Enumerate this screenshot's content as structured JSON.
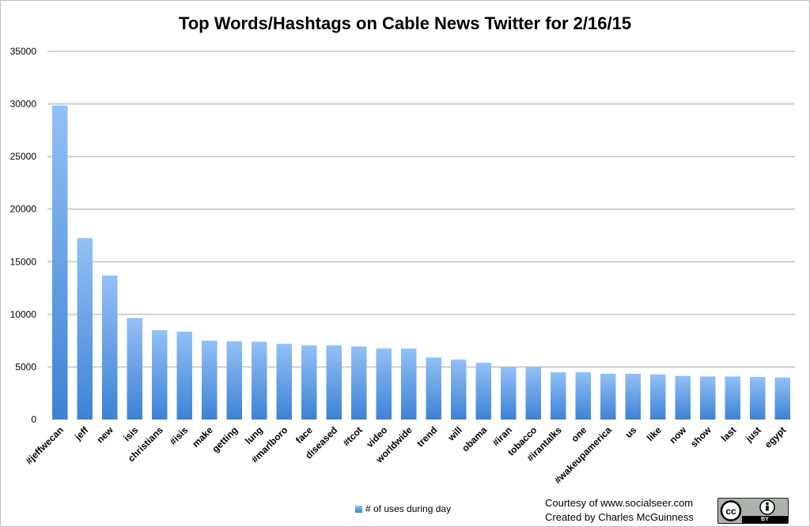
{
  "chart_data": {
    "type": "bar",
    "title": "Top Words/Hashtags on Cable News Twitter for 2/16/15",
    "xlabel": "",
    "ylabel": "",
    "ylim": [
      0,
      35000
    ],
    "yticks": [
      0,
      5000,
      10000,
      15000,
      20000,
      25000,
      30000,
      35000
    ],
    "grid": true,
    "legend_position": "bottom",
    "categories": [
      "#jeffwecan",
      "jeff",
      "new",
      "isis",
      "christians",
      "#isis",
      "make",
      "getting",
      "lung",
      "#marlboro",
      "face",
      "diseased",
      "#tcot",
      "video",
      "worldwide",
      "trend",
      "will",
      "obama",
      "#iran",
      "tobacco",
      "#irantalks",
      "one",
      "#wakeupamerica",
      "us",
      "like",
      "now",
      "show",
      "last",
      "just",
      "egypt"
    ],
    "series": [
      {
        "name": "# of uses during day",
        "values": [
          29850,
          17250,
          13700,
          9650,
          8500,
          8350,
          7500,
          7450,
          7400,
          7200,
          7050,
          7050,
          6950,
          6750,
          6750,
          5900,
          5700,
          5400,
          4950,
          4950,
          4500,
          4500,
          4350,
          4350,
          4300,
          4150,
          4100,
          4100,
          4050,
          4000
        ]
      }
    ]
  },
  "colors": {
    "bar_top": "#93c0f5",
    "bar_bottom": "#3d82d6",
    "grid": "#a6a6a6"
  },
  "credits": {
    "line1": "Courtesy of www.socialseer.com",
    "line2": "Created by Charles McGuinness"
  },
  "badge": {
    "icon": "creative-commons-icon",
    "person_icon": "attribution-person-icon",
    "label": "BY"
  }
}
